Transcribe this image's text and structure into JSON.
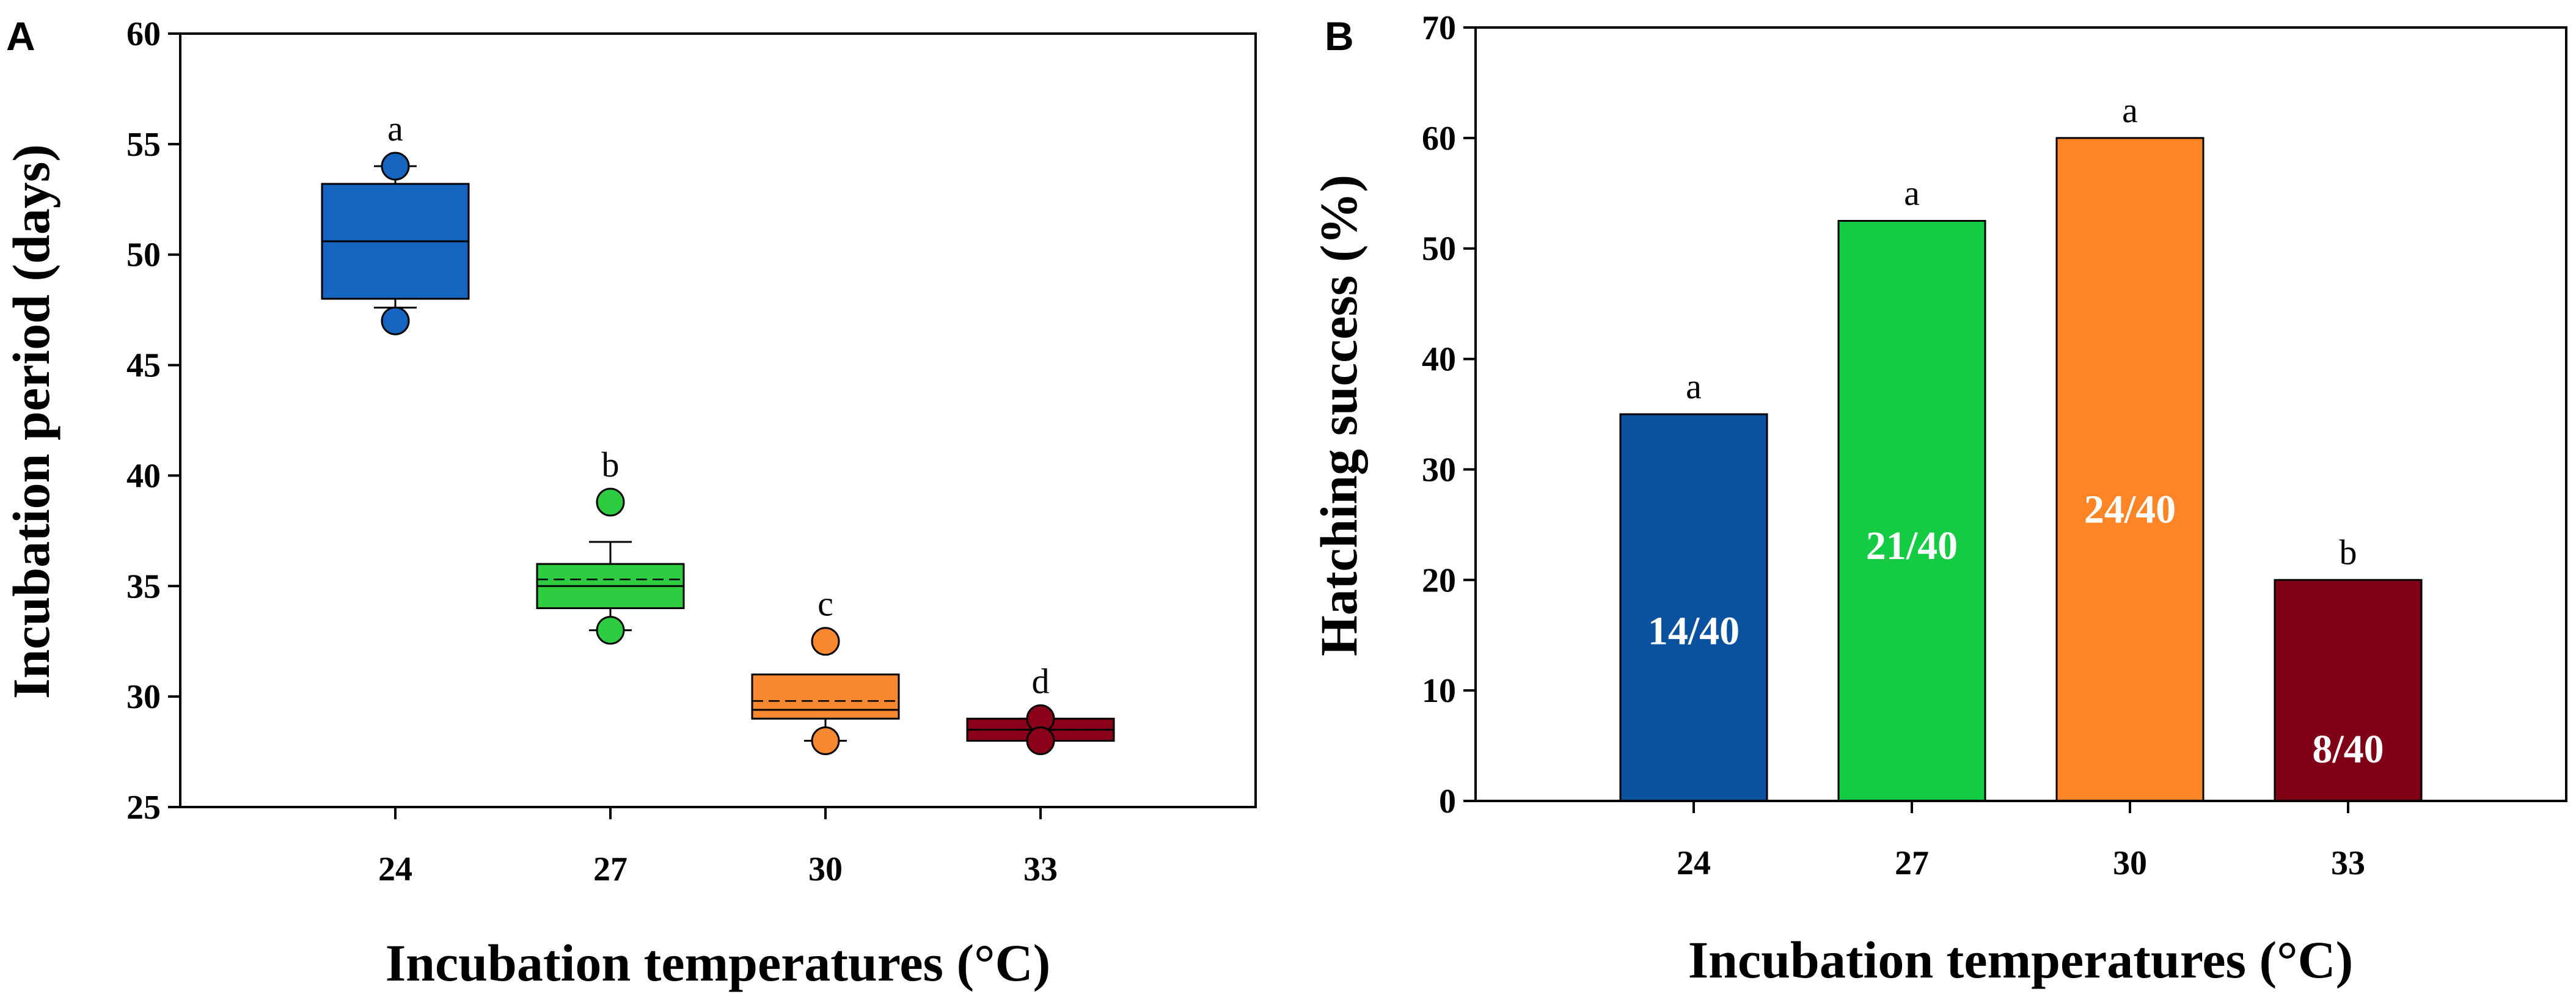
{
  "chart_data": [
    {
      "panel": "A",
      "type": "box",
      "xlabel": "Incubation temperatures (°C)",
      "ylabel": "Incubation period (days)",
      "ylim": [
        25,
        60
      ],
      "yticks": [
        "25",
        "30",
        "35",
        "40",
        "45",
        "50",
        "55",
        "60"
      ],
      "categories": [
        "24",
        "27",
        "30",
        "33"
      ],
      "boxes": [
        {
          "category": "24",
          "color": "#1565C0",
          "q1": 48.0,
          "median": 50.6,
          "mean": 50.6,
          "q3": 53.2,
          "whisker_low": 47.6,
          "whisker_high": 54.0,
          "outliers": [
            54.0,
            47.0
          ],
          "letter": "a"
        },
        {
          "category": "27",
          "color": "#2ECC40",
          "q1": 34.0,
          "median": 35.0,
          "mean": 35.3,
          "q3": 36.0,
          "whisker_low": 33.0,
          "whisker_high": 37.0,
          "outliers": [
            38.8,
            33.0
          ],
          "letter": "b"
        },
        {
          "category": "30",
          "color": "#F7882F",
          "q1": 29.0,
          "median": 29.4,
          "mean": 29.8,
          "q3": 31.0,
          "whisker_low": 28.0,
          "whisker_high": 31.0,
          "outliers": [
            32.5,
            28.0
          ],
          "letter": "c"
        },
        {
          "category": "33",
          "color": "#8B0019",
          "q1": 28.0,
          "median": 28.5,
          "mean": 28.5,
          "q3": 29.0,
          "whisker_low": 28.0,
          "whisker_high": 29.0,
          "outliers": [
            29.0,
            28.0
          ],
          "letter": "d"
        }
      ]
    },
    {
      "panel": "B",
      "type": "bar",
      "xlabel": "Incubation temperatures (°C)",
      "ylabel": "Hatching success (%)",
      "ylim": [
        0,
        70
      ],
      "yticks": [
        "0",
        "10",
        "20",
        "30",
        "40",
        "50",
        "60",
        "70"
      ],
      "categories": [
        "24",
        "27",
        "30",
        "33"
      ],
      "values": [
        35,
        52.5,
        60,
        20
      ],
      "colors": [
        "#0A52A0",
        "#14CC44",
        "#FF8426",
        "#800016"
      ],
      "bar_labels": [
        "14/40",
        "21/40",
        "24/40",
        "8/40"
      ],
      "letters": [
        "a",
        "a",
        "a",
        "b"
      ]
    }
  ]
}
